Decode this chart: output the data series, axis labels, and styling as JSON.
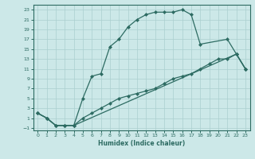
{
  "xlabel": "Humidex (Indice chaleur)",
  "ylabel": "",
  "bg_color": "#cce8e8",
  "line_color": "#2d6b62",
  "grid_color": "#aacfcf",
  "xlim": [
    -0.5,
    23.5
  ],
  "ylim": [
    -1.5,
    24
  ],
  "xticks": [
    0,
    1,
    2,
    3,
    4,
    5,
    6,
    7,
    8,
    9,
    10,
    11,
    12,
    13,
    14,
    15,
    16,
    17,
    18,
    19,
    20,
    21,
    22,
    23
  ],
  "yticks": [
    -1,
    1,
    3,
    5,
    7,
    9,
    11,
    13,
    15,
    17,
    19,
    21,
    23
  ],
  "line1_x": [
    0,
    1,
    2,
    3,
    4,
    5,
    6,
    7,
    8,
    9,
    10,
    11,
    12,
    13,
    14,
    15,
    16,
    17,
    18,
    21,
    22,
    23
  ],
  "line1_y": [
    2,
    1,
    -0.5,
    -0.5,
    -0.5,
    5,
    9.5,
    10,
    15.5,
    17,
    19.5,
    21,
    22,
    22.5,
    22.5,
    22.5,
    23,
    22,
    16,
    17,
    14,
    11
  ],
  "line2_x": [
    0,
    1,
    2,
    3,
    4,
    22,
    23
  ],
  "line2_y": [
    2,
    1,
    -0.5,
    -0.5,
    -0.5,
    14,
    11
  ],
  "line3_x": [
    0,
    1,
    2,
    3,
    4,
    5,
    6,
    7,
    8,
    9,
    10,
    11,
    12,
    13,
    14,
    15,
    16,
    17,
    18,
    19,
    20,
    21,
    22,
    23
  ],
  "line3_y": [
    2,
    1,
    -0.5,
    -0.5,
    -0.5,
    1,
    2,
    3,
    4,
    5,
    5.5,
    6,
    6.5,
    7,
    8,
    9,
    9.5,
    10,
    11,
    12,
    13,
    13,
    14,
    11
  ]
}
